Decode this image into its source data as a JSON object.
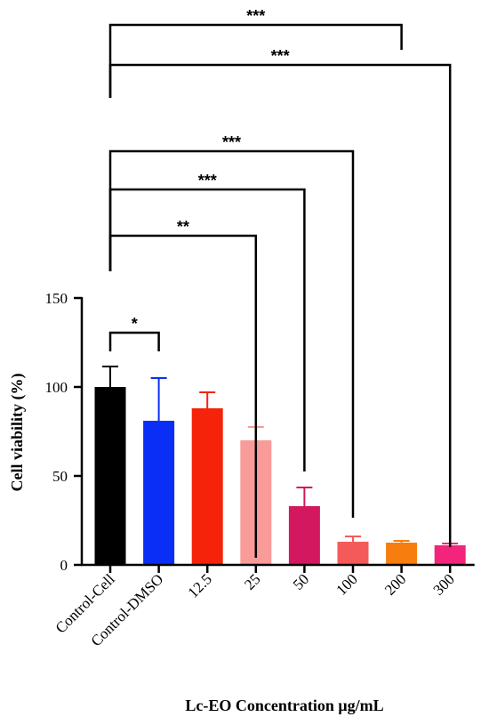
{
  "chart_data": {
    "type": "bar",
    "categories": [
      "Control-Cell",
      "Control-DMSO",
      "12.5",
      "25",
      "50",
      "100",
      "200",
      "300"
    ],
    "values": [
      100,
      81,
      88,
      70,
      33,
      13,
      12.5,
      11
    ],
    "errors": [
      11.5,
      24,
      9,
      7.5,
      10.5,
      3,
      1,
      1
    ],
    "colors": [
      "#000000",
      "#0a2ef5",
      "#f5230a",
      "#f99b98",
      "#d4185f",
      "#f55a5a",
      "#f77e0e",
      "#f2247c"
    ],
    "error_colors": [
      "#000000",
      "#0a2ef5",
      "#f5230a",
      "#f99b98",
      "#d4185f",
      "#f55a5a",
      "#f77e0e",
      "#f2247c"
    ],
    "ylim": [
      0,
      150
    ],
    "yticks": [
      0,
      50,
      100,
      150
    ],
    "ylabel": "Cell viability (%)",
    "xlabel": "Lc-EO Concentration μg/mL",
    "significance": [
      {
        "from": "Control-Cell",
        "to": "Control-DMSO",
        "label": "*"
      },
      {
        "from": "Control-Cell",
        "to": "25",
        "label": "**"
      },
      {
        "from": "Control-Cell",
        "to": "50",
        "label": "***"
      },
      {
        "from": "Control-Cell",
        "to": "100",
        "label": "***"
      },
      {
        "from": "Control-Cell",
        "to": "300",
        "label": "***"
      },
      {
        "from": "Control-Cell",
        "to": "200",
        "label": "***"
      }
    ]
  }
}
